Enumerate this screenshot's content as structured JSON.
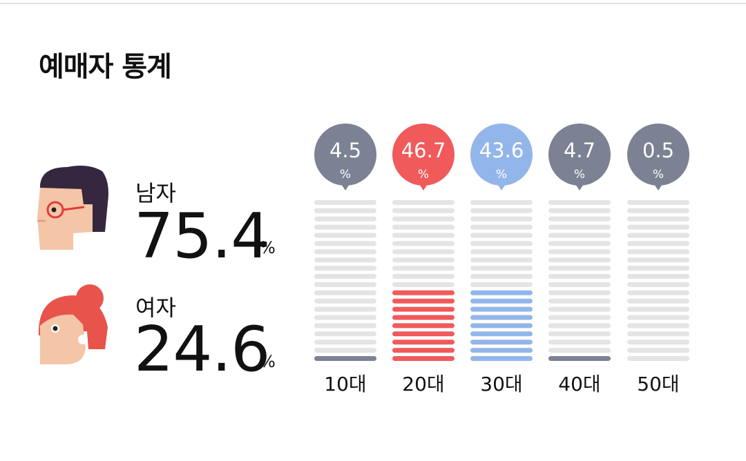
{
  "title": "예매자 통계",
  "gender": {
    "male": {
      "label": "남자",
      "value": "75.4",
      "unit": "%",
      "icon": "man-avatar-icon"
    },
    "female": {
      "label": "여자",
      "value": "24.6",
      "unit": "%",
      "icon": "woman-avatar-icon"
    }
  },
  "chart_data": {
    "type": "bar",
    "categories": [
      "10대",
      "20대",
      "30대",
      "40대",
      "50대"
    ],
    "values": [
      4.5,
      46.7,
      43.6,
      4.7,
      0.5
    ],
    "value_labels": [
      "4.5",
      "46.7",
      "43.6",
      "4.7",
      "0.5"
    ],
    "unit": "%",
    "ylim": [
      0,
      100
    ],
    "segments": 20,
    "filled_segments": [
      1,
      9,
      9,
      1,
      0
    ],
    "colors": [
      "#7c8193",
      "#f05a5b",
      "#93b6ea",
      "#7c8193",
      "#7c8193"
    ],
    "empty_color": "#e4e4e4",
    "grid": false,
    "legend": "none"
  }
}
